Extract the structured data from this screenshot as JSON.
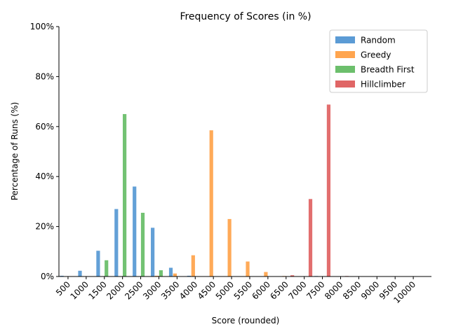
{
  "chart_data": {
    "type": "bar",
    "title": "Frequency of Scores (in %)",
    "xlabel": "Score (rounded)",
    "ylabel": "Percentage of Runs (%)",
    "categories": [
      "500",
      "1000",
      "1500",
      "2000",
      "2500",
      "3000",
      "3500",
      "4000",
      "4500",
      "5000",
      "5500",
      "6000",
      "6500",
      "7000",
      "7500",
      "8000",
      "8500",
      "9000",
      "9500",
      "10000"
    ],
    "ylim": [
      0,
      100
    ],
    "yticks": [
      0,
      20,
      40,
      60,
      80,
      100
    ],
    "ytick_labels": [
      "0%",
      "20%",
      "40%",
      "60%",
      "80%",
      "100%"
    ],
    "grid": false,
    "legend_position": "top-right",
    "series": [
      {
        "name": "Random",
        "color": "#5b9bd5",
        "values": [
          0.3,
          2.3,
          10.3,
          27.0,
          36.0,
          19.5,
          3.5,
          0.3,
          0,
          0,
          0,
          0,
          0,
          0,
          0.2,
          0,
          0,
          0,
          0,
          0
        ]
      },
      {
        "name": "Greedy",
        "color": "#ffa54f",
        "values": [
          0,
          0,
          0,
          0,
          0,
          0.3,
          1.2,
          8.5,
          58.5,
          23.0,
          6.0,
          1.8,
          0.2,
          0,
          0,
          0,
          0,
          0,
          0,
          0
        ]
      },
      {
        "name": "Breadth First",
        "color": "#6cbf6c",
        "values": [
          0,
          0,
          6.5,
          65.0,
          25.5,
          2.5,
          0,
          0,
          0,
          0,
          0,
          0,
          0,
          0,
          0,
          0,
          0,
          0,
          0,
          0
        ]
      },
      {
        "name": "Hillclimber",
        "color": "#e06666",
        "values": [
          0,
          0,
          0,
          0,
          0,
          0,
          0,
          0,
          0,
          0,
          0,
          0,
          0.5,
          31.0,
          68.8,
          0.2,
          0,
          0,
          0,
          0
        ]
      }
    ]
  }
}
